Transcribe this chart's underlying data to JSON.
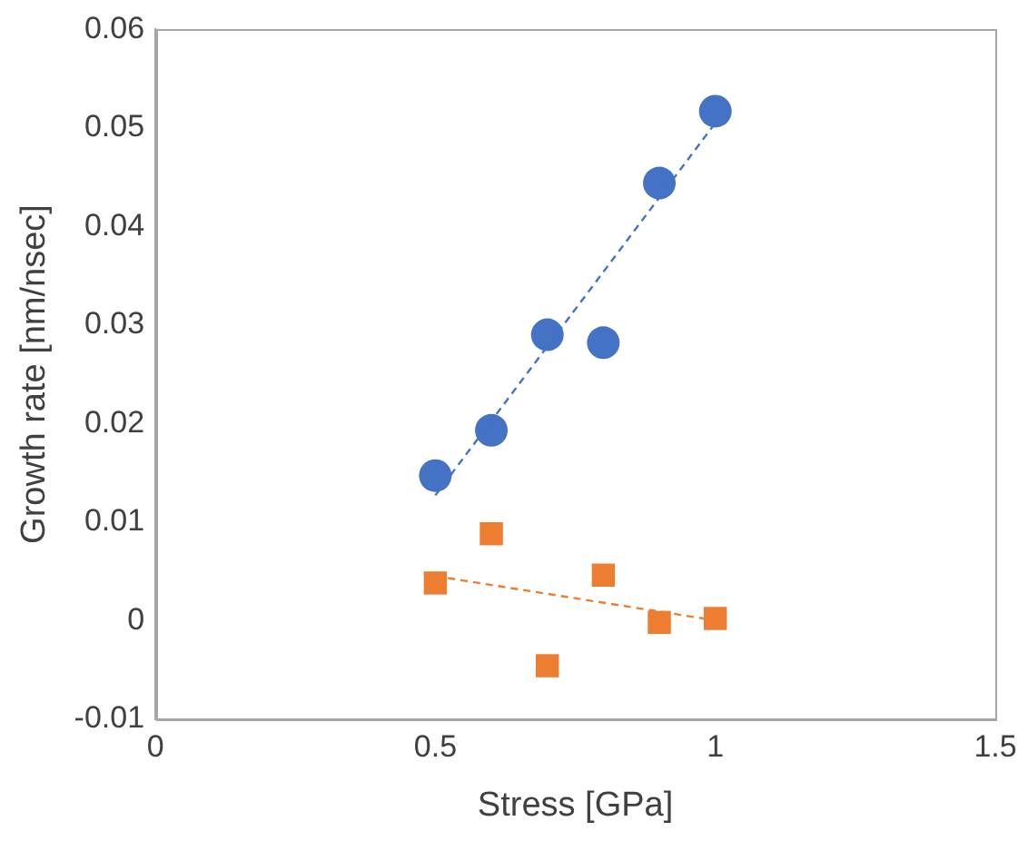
{
  "chart_data": {
    "type": "scatter",
    "xlabel": "Stress [GPa]",
    "ylabel": "Growth rate [nm/nsec]",
    "xlim": [
      0,
      1.5
    ],
    "xticks": [
      0,
      0.5,
      1,
      1.5
    ],
    "ylim": [
      -0.01,
      0.06
    ],
    "yticks": [
      -0.01,
      0,
      0.01,
      0.02,
      0.03,
      0.04,
      0.05,
      0.06
    ],
    "grid": false,
    "legend": false,
    "series": [
      {
        "type": "line",
        "color": "#4472c4",
        "line_style": "dashed",
        "marker": "none",
        "x": [
          0.5,
          1
        ],
        "values": [
          0.0127,
          0.0505
        ]
      },
      {
        "type": "line",
        "color": "#ed7d31",
        "line_style": "dashed",
        "marker": "none",
        "x": [
          0.5,
          1
        ],
        "values": [
          0.0045,
          0
        ]
      },
      {
        "type": "scatter",
        "color": "#4472c4",
        "marker": "circle",
        "x": [
          0.5,
          0.6,
          0.7,
          0.8,
          0.9,
          1.0
        ],
        "values": [
          0.0147,
          0.0193,
          0.029,
          0.0282,
          0.0444,
          0.0517
        ]
      },
      {
        "type": "scatter",
        "color": "#ed7d31",
        "marker": "square",
        "x": [
          0.5,
          0.6,
          0.7,
          0.8,
          0.9,
          1.0
        ],
        "values": [
          0.0038,
          0.0088,
          -0.0046,
          0.0046,
          -0.0002,
          0.0002
        ]
      }
    ]
  }
}
